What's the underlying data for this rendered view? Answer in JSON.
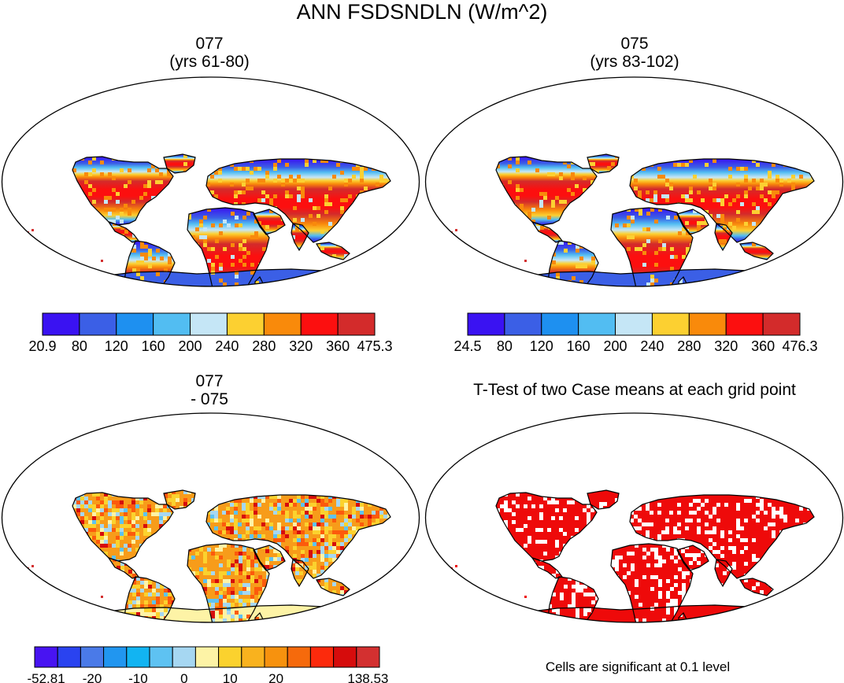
{
  "title": "ANN FSDSNDLN (W/m^2)",
  "panels": [
    {
      "id": "case-077",
      "title_line1": "077",
      "title_line2": "(yrs 61-80)",
      "colors": [
        "#3a12f2",
        "#3b5fe6",
        "#1e90f0",
        "#52bdf2",
        "#c5e6f6",
        "#fcd031",
        "#f98a0b",
        "#fc0f0f",
        "#d32b2b"
      ],
      "labels": [
        "20.9",
        "80",
        "120",
        "160",
        "200",
        "240",
        "280",
        "320",
        "360",
        "475.3"
      ]
    },
    {
      "id": "case-075",
      "title_line1": "075",
      "title_line2": "(yrs 83-102)",
      "colors": [
        "#3a12f2",
        "#3b5fe6",
        "#1e90f0",
        "#52bdf2",
        "#c5e6f6",
        "#fcd031",
        "#f98a0b",
        "#fc0f0f",
        "#d32b2b"
      ],
      "labels": [
        "24.5",
        "80",
        "120",
        "160",
        "200",
        "240",
        "280",
        "320",
        "360",
        "476.3"
      ]
    },
    {
      "id": "difference",
      "title_line1": "077",
      "title_line2": "- 075",
      "colors": [
        "#4814f2",
        "#2a43f0",
        "#4a7ae8",
        "#2196f0",
        "#12b4f2",
        "#5ec2f2",
        "#a6d7f2",
        "#fdf3a6",
        "#fbd22e",
        "#f9b21e",
        "#f7920e",
        "#f66a0c",
        "#fc2a0c",
        "#d60c0c",
        "#d33030"
      ],
      "labels": [
        "-52.81",
        "",
        "-20",
        "",
        "-10",
        "",
        "0",
        "",
        "10",
        "",
        "20",
        "",
        "",
        "",
        "138.53"
      ]
    }
  ],
  "ttest": {
    "title": "T-Test of two Case means at each grid point",
    "footer": "Cells are significant at 0.1 level",
    "sig_color": "#ee0a0a"
  },
  "chart_data": [
    {
      "type": "heatmap",
      "title": "077 (yrs 61-80)",
      "variable": "ANN FSDSNDLN",
      "units": "W/m^2",
      "range": [
        20.9,
        475.3
      ],
      "levels": [
        80,
        120,
        160,
        200,
        240,
        280,
        320,
        360
      ]
    },
    {
      "type": "heatmap",
      "title": "075 (yrs 83-102)",
      "variable": "ANN FSDSNDLN",
      "units": "W/m^2",
      "range": [
        24.5,
        476.3
      ],
      "levels": [
        80,
        120,
        160,
        200,
        240,
        280,
        320,
        360
      ]
    },
    {
      "type": "heatmap",
      "title": "077 - 075",
      "variable": "ANN FSDSNDLN difference",
      "units": "W/m^2",
      "range": [
        -52.81,
        138.53
      ],
      "levels": [
        -20,
        -10,
        0,
        10,
        20
      ]
    },
    {
      "type": "heatmap",
      "title": "T-Test of two Case means at each grid point",
      "significance_level": 0.1
    }
  ]
}
